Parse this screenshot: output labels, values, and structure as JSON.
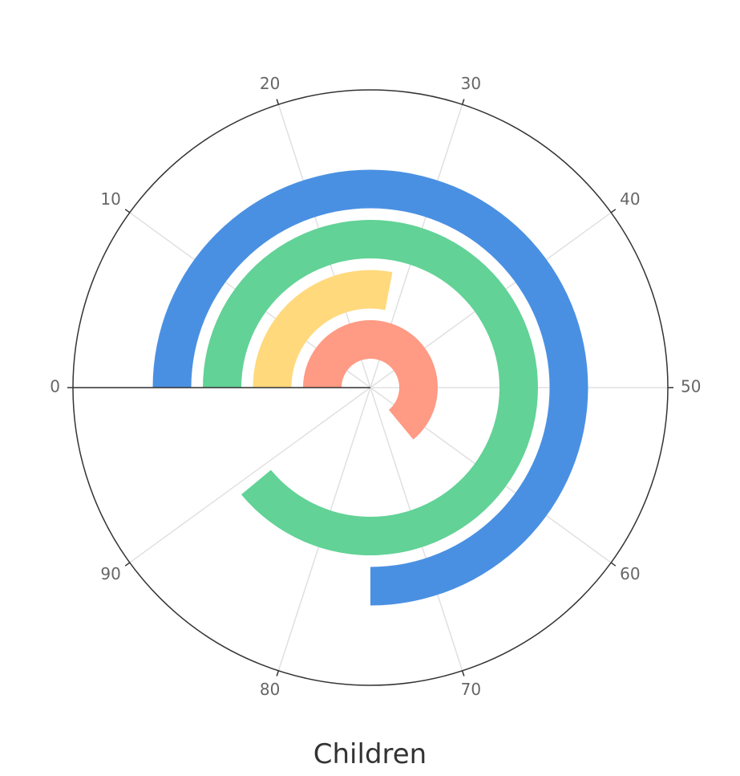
{
  "chart_data": {
    "type": "polar-bar",
    "title": "Children",
    "angle_axis": {
      "min": 0,
      "max": 100,
      "ticks": [
        0,
        10,
        20,
        30,
        40,
        50,
        60,
        70,
        80,
        90
      ],
      "start": "left",
      "direction": "clockwise"
    },
    "series": [
      {
        "values": [
          75
        ],
        "color": "#4a90e2"
      },
      {
        "values": [
          89
        ],
        "color": "#62d296"
      },
      {
        "values": [
          28
        ],
        "color": "#ffd97c"
      },
      {
        "values": [
          64
        ],
        "color": "#ff9a84"
      }
    ],
    "grid": true,
    "colors": {
      "axis_line": "#333333",
      "grid_line": "#e0e0e0",
      "tick_label": "#666666"
    }
  }
}
